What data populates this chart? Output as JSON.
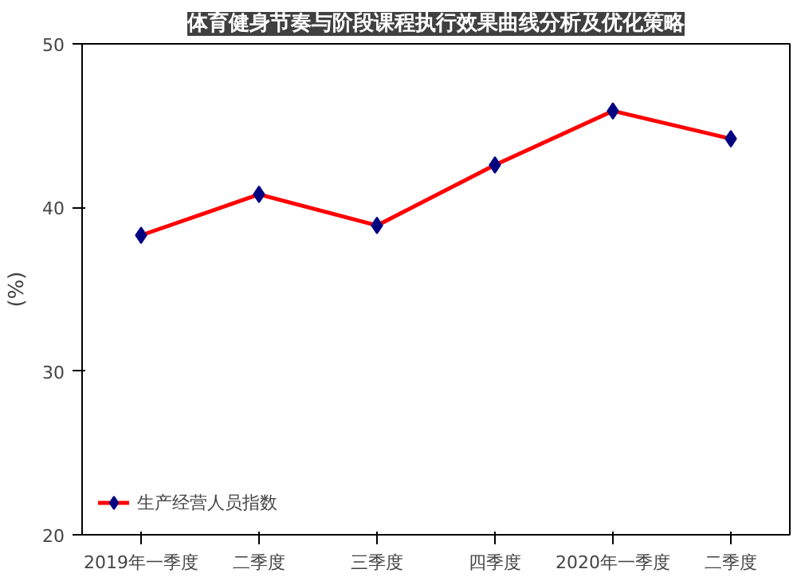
{
  "chart_data": {
    "type": "line",
    "title": "体育健身节奏与阶段课程执行效果曲线分析及优化策略",
    "ylabel": "(%)",
    "categories": [
      "2019年一季度",
      "二季度",
      "三季度",
      "四季度",
      "2020年一季度",
      "二季度"
    ],
    "series": [
      {
        "name": "生产经营人员指数",
        "color": "#ff0000",
        "values": [
          38.3,
          40.8,
          38.9,
          42.6,
          45.9,
          44.2
        ]
      }
    ],
    "ylim": [
      20,
      50
    ],
    "yticks": [
      20,
      30,
      40,
      50
    ],
    "grid": false,
    "legend": "bottom left",
    "marker": "diamond",
    "line_style": "solid"
  }
}
